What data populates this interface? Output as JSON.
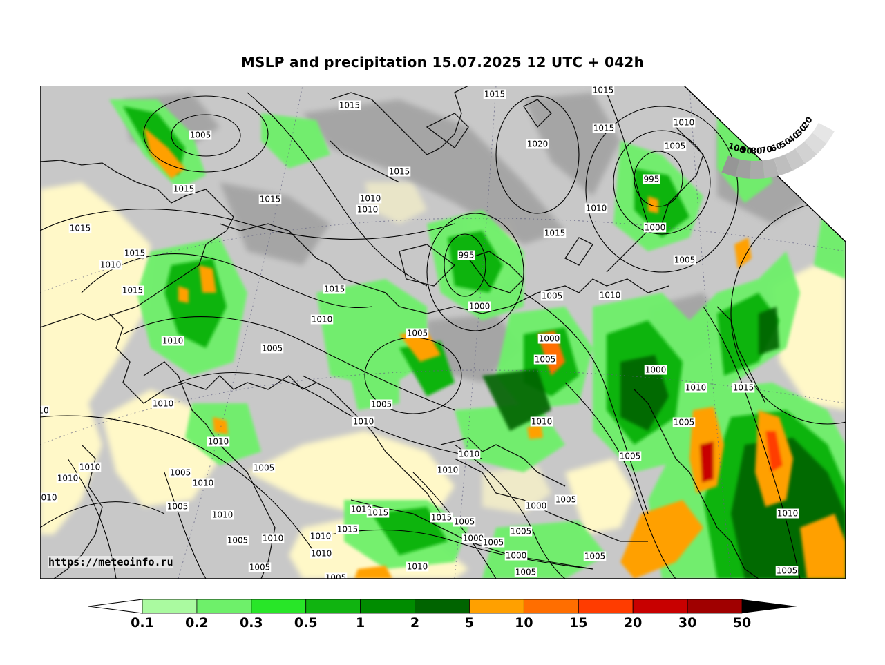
{
  "title": "MSLP and precipitation 15.07.2025 12 UTC + 042h",
  "watermark": "https://meteoinfo.ru",
  "legend": {
    "unit_hint": "precipitation",
    "levels": [
      "0.1",
      "0.2",
      "0.3",
      "0.5",
      "1",
      "2",
      "5",
      "10",
      "15",
      "20",
      "30",
      "50"
    ],
    "colors": [
      "#aafaa0",
      "#6ef06a",
      "#28e628",
      "#10b410",
      "#008c00",
      "#006400",
      "#ffa000",
      "#ff6e00",
      "#ff3c00",
      "#c80000",
      "#a00000"
    ],
    "under_color": "#ffffff",
    "over_color": "#000000"
  },
  "cloud_scale": {
    "labels": [
      "100",
      "90",
      "80",
      "70",
      "60",
      "50",
      "40",
      "30",
      "20"
    ]
  },
  "isobars": [
    {
      "v": "1015"
    },
    {
      "v": "1005"
    },
    {
      "v": "1015"
    },
    {
      "v": "1015"
    },
    {
      "v": "1015"
    },
    {
      "v": "1015"
    },
    {
      "v": "1010"
    },
    {
      "v": "1015"
    },
    {
      "v": "1015"
    },
    {
      "v": "1020"
    },
    {
      "v": "1010"
    },
    {
      "v": "1005"
    },
    {
      "v": "995"
    },
    {
      "v": "1010"
    },
    {
      "v": "1000"
    },
    {
      "v": "1015"
    },
    {
      "v": "1010"
    },
    {
      "v": "1005"
    },
    {
      "v": "1015"
    },
    {
      "v": "1015"
    },
    {
      "v": "995"
    },
    {
      "v": "1015"
    },
    {
      "v": "1010"
    },
    {
      "v": "1015"
    },
    {
      "v": "1010"
    },
    {
      "v": "1000"
    },
    {
      "v": "1005"
    },
    {
      "v": "1010"
    },
    {
      "v": "1010"
    },
    {
      "v": "1005"
    },
    {
      "v": "1000"
    },
    {
      "v": "1000"
    },
    {
      "v": "1005"
    },
    {
      "v": "1005"
    },
    {
      "v": "1015"
    },
    {
      "v": "1010"
    },
    {
      "v": "1005"
    },
    {
      "v": "1010"
    },
    {
      "v": "1010"
    },
    {
      "v": "1010"
    },
    {
      "v": "1010"
    },
    {
      "v": "1005"
    },
    {
      "v": "1010"
    },
    {
      "v": "1010"
    },
    {
      "v": "1010"
    },
    {
      "v": "1005"
    },
    {
      "v": "1005"
    },
    {
      "v": "1010"
    },
    {
      "v": "1005"
    },
    {
      "v": "1010"
    },
    {
      "v": "1005"
    },
    {
      "v": "1000"
    },
    {
      "v": "1010"
    },
    {
      "v": "1005"
    },
    {
      "v": "1010"
    },
    {
      "v": "1005"
    },
    {
      "v": "1010"
    },
    {
      "v": "1010"
    },
    {
      "v": "1015"
    },
    {
      "v": "1010"
    },
    {
      "v": "1015"
    },
    {
      "v": "1015"
    },
    {
      "v": "1005"
    },
    {
      "v": "1000"
    },
    {
      "v": "1005"
    },
    {
      "v": "1005"
    },
    {
      "v": "1000"
    },
    {
      "v": "1005"
    },
    {
      "v": "1005"
    },
    {
      "v": "1010"
    },
    {
      "v": "1005"
    },
    {
      "v": "1010"
    },
    {
      "v": "1005"
    },
    {
      "v": "1005"
    },
    {
      "v": "10"
    },
    {
      "v": "010"
    }
  ]
}
